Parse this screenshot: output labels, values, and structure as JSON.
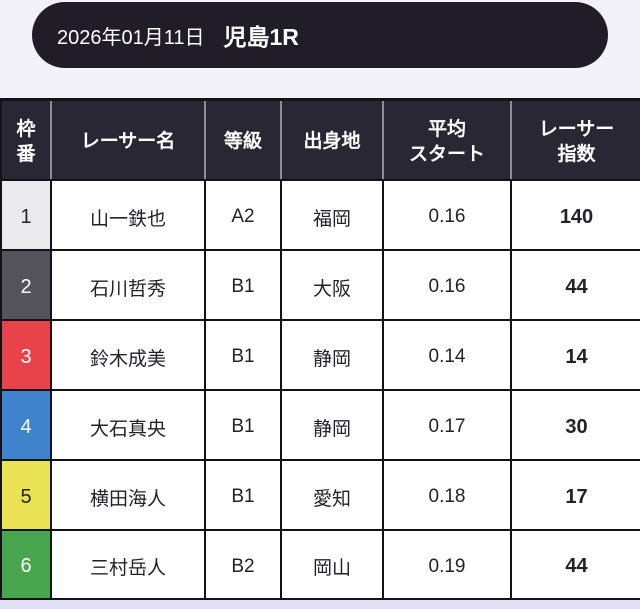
{
  "header": {
    "date": "2026年01月11日",
    "race": "児島1R",
    "background": "#201d29",
    "text_color": "#ffffff"
  },
  "table": {
    "header_background": "#2a2734",
    "header_text_color": "#ffffff",
    "grid_color": "#141219",
    "columns": [
      {
        "key": "waku",
        "label": "枠番",
        "line1": "枠",
        "line2": "番"
      },
      {
        "key": "name",
        "label": "レーサー名"
      },
      {
        "key": "grade",
        "label": "等級"
      },
      {
        "key": "origin",
        "label": "出身地"
      },
      {
        "key": "avg_start",
        "label": "平均スタート",
        "line1": "平均",
        "line2": "スタート"
      },
      {
        "key": "index",
        "label": "レーサー指数",
        "line1": "レーサー",
        "line2": "指数"
      }
    ],
    "rows": [
      {
        "waku": "1",
        "name": "山一鉄也",
        "grade": "A2",
        "origin": "福岡",
        "avg_start": "0.16",
        "index": "140",
        "waku_bg": "#eaeaec",
        "waku_text_color": "#23222b"
      },
      {
        "waku": "2",
        "name": "石川哲秀",
        "grade": "B1",
        "origin": "大阪",
        "avg_start": "0.16",
        "index": "44",
        "waku_bg": "#54525a",
        "waku_text_color": "#ffffff"
      },
      {
        "waku": "3",
        "name": "鈴木成美",
        "grade": "B1",
        "origin": "静岡",
        "avg_start": "0.14",
        "index": "14",
        "waku_bg": "#e8434a",
        "waku_text_color": "#ffffff"
      },
      {
        "waku": "4",
        "name": "大石真央",
        "grade": "B1",
        "origin": "静岡",
        "avg_start": "0.17",
        "index": "30",
        "waku_bg": "#3e83cc",
        "waku_text_color": "#ffffff"
      },
      {
        "waku": "5",
        "name": "横田海人",
        "grade": "B1",
        "origin": "愛知",
        "avg_start": "0.18",
        "index": "17",
        "waku_bg": "#e9e355",
        "waku_text_color": "#23222b"
      },
      {
        "waku": "6",
        "name": "三村岳人",
        "grade": "B2",
        "origin": "岡山",
        "avg_start": "0.19",
        "index": "44",
        "waku_bg": "#48a64f",
        "waku_text_color": "#ffffff"
      }
    ]
  }
}
